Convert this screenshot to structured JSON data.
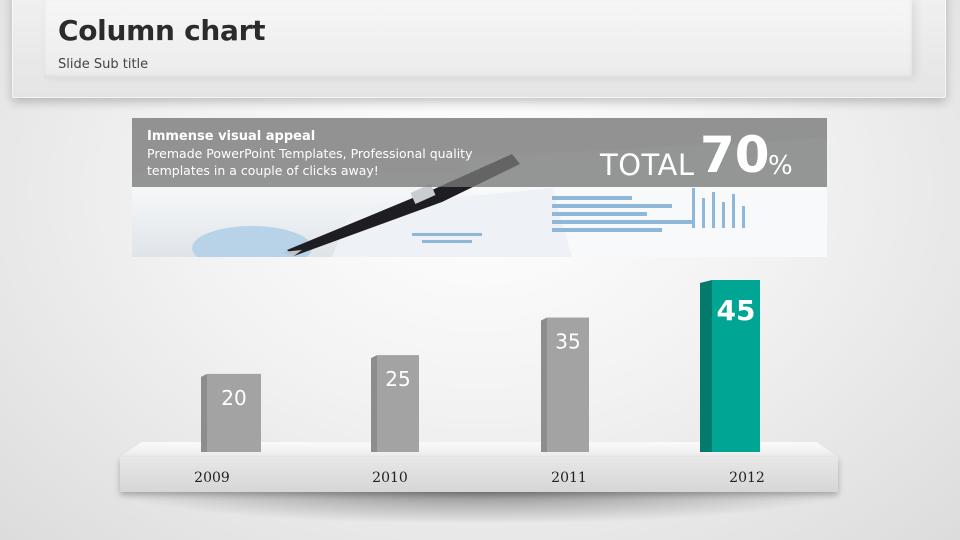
{
  "slide": {
    "title": "Column chart",
    "subtitle": "Slide Sub title"
  },
  "banner": {
    "heading": "Immense visual appeal",
    "text": "Premade PowerPoint Templates, Professional quality templates in a couple of clicks away!",
    "total_word": "TOTAL",
    "total_value": "70",
    "total_unit": "%"
  },
  "colors": {
    "bar_default": "#a3a3a3",
    "bar_highlight": "#00a693",
    "label": "#ffffff"
  },
  "chart_data": {
    "type": "bar",
    "categories": [
      "2009",
      "2010",
      "2011",
      "2012"
    ],
    "values": [
      20,
      25,
      35,
      45
    ],
    "data_labels": [
      "20",
      "25",
      "35",
      "45"
    ],
    "highlight_index": 3,
    "title": "",
    "xlabel": "",
    "ylabel": "",
    "ylim": [
      0,
      45
    ],
    "grid": false,
    "legend": "none"
  }
}
